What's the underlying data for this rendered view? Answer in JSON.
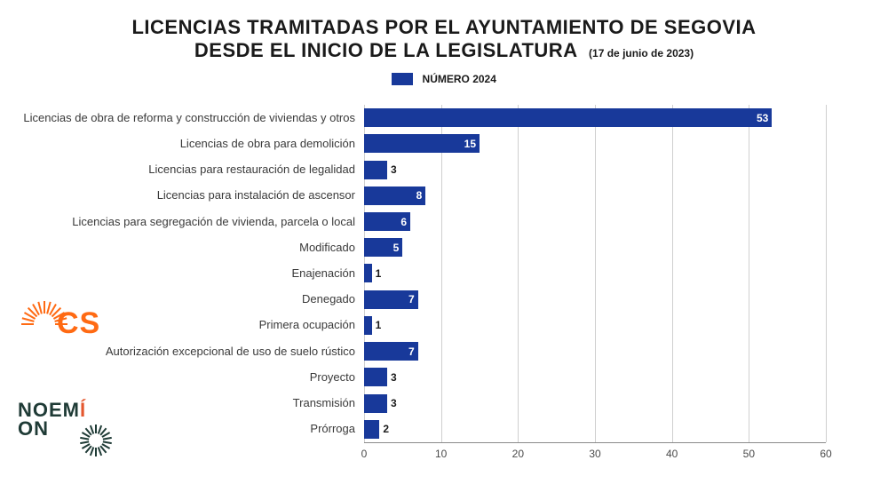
{
  "title": {
    "line1": "LICENCIAS TRAMITADAS POR EL AYUNTAMIENTO DE SEGOVIA",
    "line2": "DESDE EL INICIO DE LA LEGISLATURA",
    "note": "(17 de junio de 2023)",
    "fontsize": 22,
    "color": "#1a1a1a"
  },
  "legend": {
    "label": "NÚMERO 2024",
    "swatch_color": "#18399a"
  },
  "chart": {
    "type": "bar-horizontal",
    "bar_color": "#18399a",
    "value_label_color_inside": "#ffffff",
    "value_label_color_outside": "#1a1a1a",
    "background_color": "#ffffff",
    "grid_color": "#cfcfcf",
    "axis_color": "#8a8a8a",
    "xlim": [
      0,
      60
    ],
    "xtick_step": 10,
    "xtick_labels": [
      "0",
      "10",
      "20",
      "30",
      "40",
      "50",
      "60"
    ],
    "label_fontsize": 13,
    "tick_fontsize": 12,
    "value_fontsize": 12,
    "categories": [
      "Licencias de obra de reforma y construcción de viviendas y otros",
      "Licencias de obra para demolición",
      "Licencias para restauración de legalidad",
      "Licencias para instalación de ascensor",
      "Licencias para segregación de vivienda, parcela o local",
      "Modificado",
      "Enajenación",
      "Denegado",
      "Primera ocupación",
      "Autorización excepcional de uso de suelo rústico",
      "Proyecto",
      "Transmisión",
      "Prórroga"
    ],
    "values": [
      53,
      15,
      3,
      8,
      6,
      5,
      1,
      7,
      1,
      7,
      3,
      3,
      2
    ]
  },
  "logos": {
    "cs": {
      "text": "CS",
      "color": "#ff6a13"
    },
    "noemi": {
      "line1": "NOEMÍ",
      "line2": "ON",
      "color": "#1f3b36",
      "accent": "#e4572e"
    }
  }
}
